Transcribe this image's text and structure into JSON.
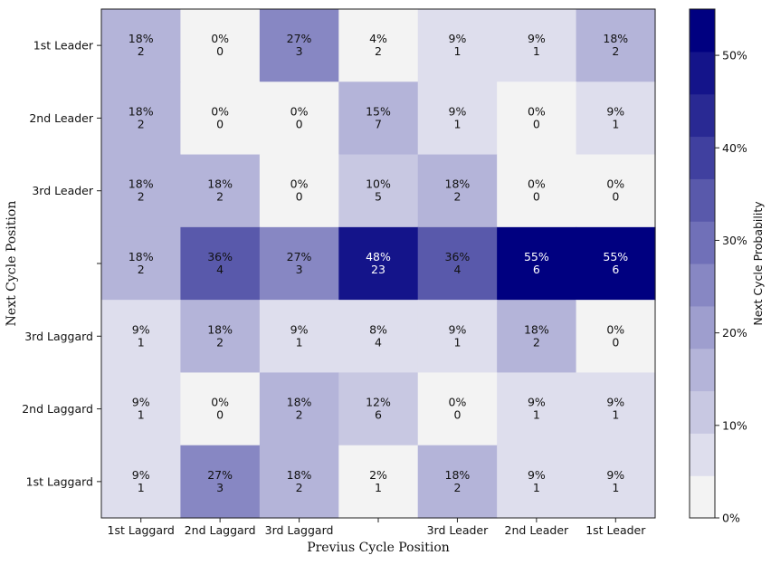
{
  "chart_data": {
    "type": "heatmap",
    "xlabel": "Previus Cycle Position",
    "ylabel": "Next Cycle Position",
    "x_categories": [
      "1st Laggard",
      "2nd Laggard",
      "3rd Laggard",
      "",
      "3rd Leader",
      "2nd Leader",
      "1st Leader"
    ],
    "y_categories": [
      "1st Leader",
      "2nd Leader",
      "3rd Leader",
      "",
      "3rd Laggard",
      "2nd Laggard",
      "1st Laggard"
    ],
    "cells": [
      [
        {
          "pct": 18,
          "count": 2
        },
        {
          "pct": 0,
          "count": 0
        },
        {
          "pct": 27,
          "count": 3
        },
        {
          "pct": 4,
          "count": 2
        },
        {
          "pct": 9,
          "count": 1
        },
        {
          "pct": 9,
          "count": 1
        },
        {
          "pct": 18,
          "count": 2
        }
      ],
      [
        {
          "pct": 18,
          "count": 2
        },
        {
          "pct": 0,
          "count": 0
        },
        {
          "pct": 0,
          "count": 0
        },
        {
          "pct": 15,
          "count": 7
        },
        {
          "pct": 9,
          "count": 1
        },
        {
          "pct": 0,
          "count": 0
        },
        {
          "pct": 9,
          "count": 1
        }
      ],
      [
        {
          "pct": 18,
          "count": 2
        },
        {
          "pct": 18,
          "count": 2
        },
        {
          "pct": 0,
          "count": 0
        },
        {
          "pct": 10,
          "count": 5
        },
        {
          "pct": 18,
          "count": 2
        },
        {
          "pct": 0,
          "count": 0
        },
        {
          "pct": 0,
          "count": 0
        }
      ],
      [
        {
          "pct": 18,
          "count": 2
        },
        {
          "pct": 36,
          "count": 4
        },
        {
          "pct": 27,
          "count": 3
        },
        {
          "pct": 48,
          "count": 23
        },
        {
          "pct": 36,
          "count": 4
        },
        {
          "pct": 55,
          "count": 6
        },
        {
          "pct": 55,
          "count": 6
        }
      ],
      [
        {
          "pct": 9,
          "count": 1
        },
        {
          "pct": 18,
          "count": 2
        },
        {
          "pct": 9,
          "count": 1
        },
        {
          "pct": 8,
          "count": 4
        },
        {
          "pct": 9,
          "count": 1
        },
        {
          "pct": 18,
          "count": 2
        },
        {
          "pct": 0,
          "count": 0
        }
      ],
      [
        {
          "pct": 9,
          "count": 1
        },
        {
          "pct": 0,
          "count": 0
        },
        {
          "pct": 18,
          "count": 2
        },
        {
          "pct": 12,
          "count": 6
        },
        {
          "pct": 0,
          "count": 0
        },
        {
          "pct": 9,
          "count": 1
        },
        {
          "pct": 9,
          "count": 1
        }
      ],
      [
        {
          "pct": 9,
          "count": 1
        },
        {
          "pct": 27,
          "count": 3
        },
        {
          "pct": 18,
          "count": 2
        },
        {
          "pct": 2,
          "count": 1
        },
        {
          "pct": 18,
          "count": 2
        },
        {
          "pct": 9,
          "count": 1
        },
        {
          "pct": 9,
          "count": 1
        }
      ]
    ],
    "colorbar": {
      "label": "Next Cycle Probability",
      "range": [
        0,
        55
      ],
      "ticks": [
        {
          "value": 0,
          "label": "0%"
        },
        {
          "value": 10,
          "label": "10%"
        },
        {
          "value": 20,
          "label": "20%"
        },
        {
          "value": 30,
          "label": "30%"
        },
        {
          "value": 40,
          "label": "40%"
        },
        {
          "value": 50,
          "label": "50%"
        }
      ],
      "bins": [
        "#f3f3f3",
        "#dedeed",
        "#c8c8e2",
        "#b4b4d9",
        "#9e9ece",
        "#8787c3",
        "#7070b8",
        "#5959ab",
        "#40409f",
        "#292993",
        "#14148a",
        "#000080"
      ]
    }
  }
}
